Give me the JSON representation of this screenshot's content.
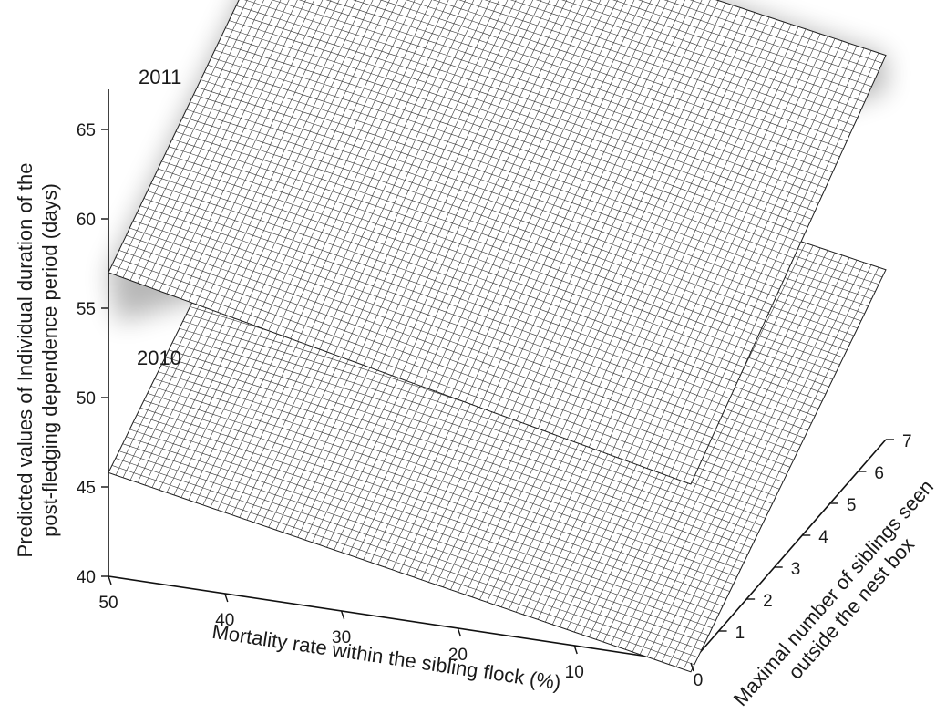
{
  "chart_data": {
    "type": "surface",
    "title": "",
    "xlabel": "Mortality rate within the sibling flock (%)",
    "ylabel_lines": [
      "Maximal number of siblings seen",
      "outside the nest box"
    ],
    "zlabel_lines": [
      "Predicted values of Individual duration of the",
      "post-fledging dependence period (days)"
    ],
    "x_ticks": [
      0,
      10,
      20,
      30,
      40,
      50
    ],
    "y_ticks": [
      1,
      2,
      3,
      4,
      5,
      6,
      7
    ],
    "z_ticks": [
      40,
      45,
      50,
      55,
      60,
      65
    ],
    "x_range": [
      0,
      50
    ],
    "y_range": [
      0,
      7
    ],
    "z_range": [
      40,
      67
    ],
    "grid": false,
    "series": [
      {
        "name": "2010",
        "corners": {
          "x50_y0": 45.8,
          "x0_y0": 39.5,
          "x50_y7": 55.5,
          "x0_y7": 49.5
        }
      },
      {
        "name": "2011",
        "corners": {
          "x50_y0": 57.0,
          "x0_y0": 50.0,
          "x50_y7": 67.3,
          "x0_y7": 61.5
        }
      }
    ]
  }
}
